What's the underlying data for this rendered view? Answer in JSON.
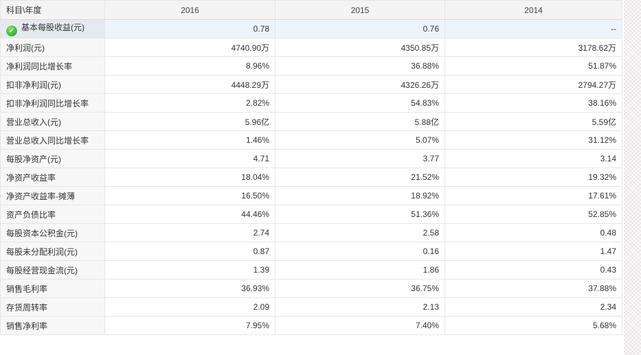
{
  "table": {
    "header": {
      "subject_label": "科目\\年度",
      "years": [
        "2016",
        "2015",
        "2014"
      ]
    },
    "rows": [
      {
        "label": "基本每股收益(元)",
        "values": [
          "0.78",
          "0.76",
          "--"
        ],
        "highlighted": true,
        "icon": "green-check"
      },
      {
        "label": "净利润(元)",
        "values": [
          "4740.90万",
          "4350.85万",
          "3178.62万"
        ]
      },
      {
        "label": "净利润同比增长率",
        "values": [
          "8.96%",
          "36.88%",
          "51.87%"
        ]
      },
      {
        "label": "扣非净利润(元)",
        "values": [
          "4448.29万",
          "4326.26万",
          "2794.27万"
        ]
      },
      {
        "label": "扣非净利润同比增长率",
        "values": [
          "2.82%",
          "54.83%",
          "38.16%"
        ]
      },
      {
        "label": "营业总收入(元)",
        "values": [
          "5.96亿",
          "5.88亿",
          "5.59亿"
        ]
      },
      {
        "label": "营业总收入同比增长率",
        "values": [
          "1.46%",
          "5.07%",
          "31.12%"
        ]
      },
      {
        "label": "每股净资产(元)",
        "values": [
          "4.71",
          "3.77",
          "3.14"
        ]
      },
      {
        "label": "净资产收益率",
        "values": [
          "18.04%",
          "21.52%",
          "19.32%"
        ]
      },
      {
        "label": "净资产收益率-摊薄",
        "values": [
          "16.50%",
          "18.92%",
          "17.61%"
        ]
      },
      {
        "label": "资产负债比率",
        "values": [
          "44.46%",
          "51.36%",
          "52.85%"
        ]
      },
      {
        "label": "每股资本公积金(元)",
        "values": [
          "2.74",
          "2.58",
          "0.48"
        ]
      },
      {
        "label": "每股未分配利润(元)",
        "values": [
          "0.87",
          "0.16",
          "1.47"
        ]
      },
      {
        "label": "每股经营现金流(元)",
        "values": [
          "1.39",
          "1.86",
          "0.43"
        ]
      },
      {
        "label": "销售毛利率",
        "values": [
          "36.93%",
          "36.75%",
          "37.88%"
        ]
      },
      {
        "label": "存货周转率",
        "values": [
          "2.09",
          "2.13",
          "2.34"
        ]
      },
      {
        "label": "销售净利率",
        "values": [
          "7.95%",
          "7.40%",
          "5.68%"
        ]
      }
    ]
  },
  "icons": {
    "green_check": {
      "glyph": "✓",
      "color": "#2a9b2d"
    }
  },
  "colors": {
    "header_bg": "#f4f4f4",
    "label_column_bg": "#f7f7f7",
    "highlight_label_bg": "#e4eaef",
    "highlight_value_bg": "#edf4fb",
    "border": "#e6e6e6",
    "text": "#333333"
  }
}
